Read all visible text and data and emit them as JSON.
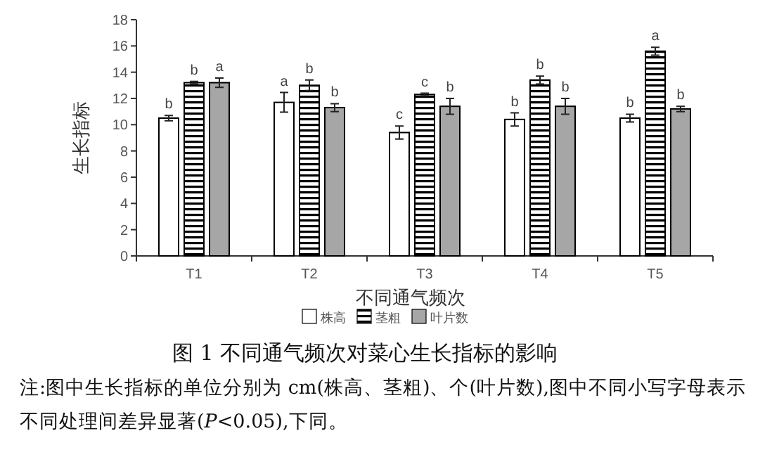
{
  "chart_data": {
    "type": "bar",
    "title": "图 1 不同通气频次对菜心生长指标的影响",
    "xlabel": "不同通气频次",
    "ylabel": "生长指标",
    "categories": [
      "T1",
      "T2",
      "T3",
      "T4",
      "T5"
    ],
    "series": [
      {
        "name": "株高",
        "color": "#ffffff",
        "values": [
          10.5,
          11.7,
          9.4,
          10.4,
          10.5
        ],
        "errors": [
          0.2,
          0.75,
          0.5,
          0.5,
          0.3
        ],
        "value_labels": [
          "b",
          "a",
          "c",
          "b",
          "b"
        ]
      },
      {
        "name": "茎粗",
        "color": "#000000",
        "values": [
          13.2,
          13.0,
          12.3,
          13.4,
          15.6
        ],
        "errors": [
          0.1,
          0.4,
          0.1,
          0.3,
          0.3
        ],
        "value_labels": [
          "b",
          "b",
          "c",
          "b",
          "a"
        ]
      },
      {
        "name": "叶片数",
        "color": "#a6a6a6",
        "values": [
          13.2,
          11.3,
          11.4,
          11.4,
          11.2
        ],
        "errors": [
          0.35,
          0.3,
          0.6,
          0.6,
          0.2
        ],
        "value_labels": [
          "a",
          "b",
          "b",
          "b",
          "b"
        ]
      }
    ],
    "ylim": [
      0,
      18
    ],
    "yticks": [
      0,
      2,
      4,
      6,
      8,
      10,
      12,
      14,
      16,
      18
    ],
    "legend": "bottom",
    "annotations": [
      "注:图中生长指标的单位分别为 cm(株高、茎粗)、个(叶片数),图中不同小写字母表示不同处理间差异显著(*P*<0.05),下同。"
    ]
  }
}
